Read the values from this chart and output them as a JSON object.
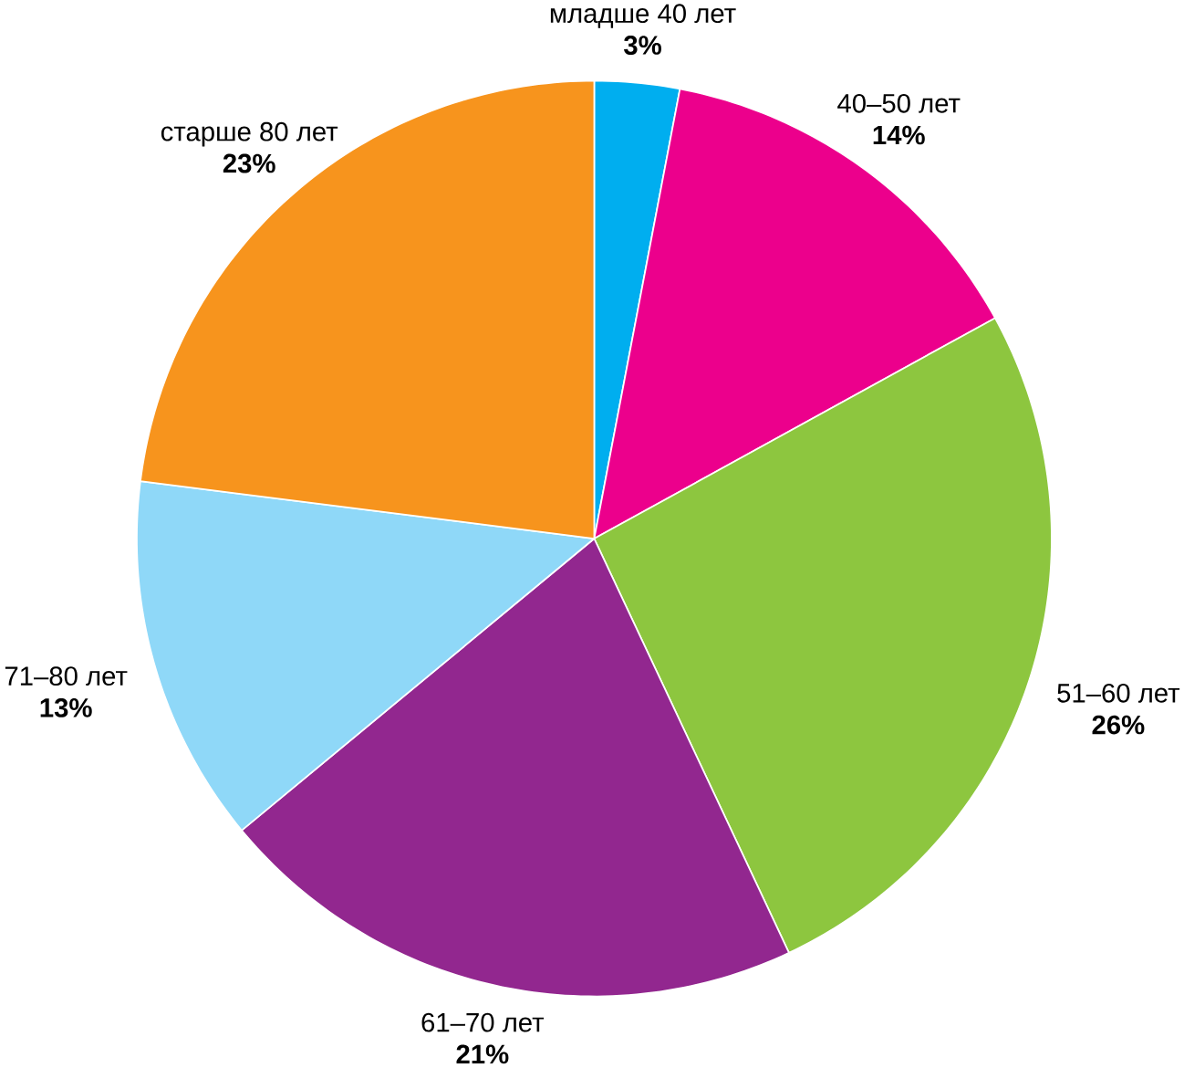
{
  "chart_data": {
    "type": "pie",
    "categories": [
      "младше 40 лет",
      "40–50 лет",
      "51–60 лет",
      "61–70 лет",
      "71–80 лет",
      "старше 80 лет"
    ],
    "values": [
      3,
      14,
      26,
      21,
      13,
      23
    ],
    "value_labels": [
      "3%",
      "14%",
      "26%",
      "21%",
      "13%",
      "23%"
    ],
    "colors": [
      "#00aeef",
      "#ec008c",
      "#8dc63f",
      "#92278f",
      "#8fd8f8",
      "#f7941d"
    ]
  }
}
